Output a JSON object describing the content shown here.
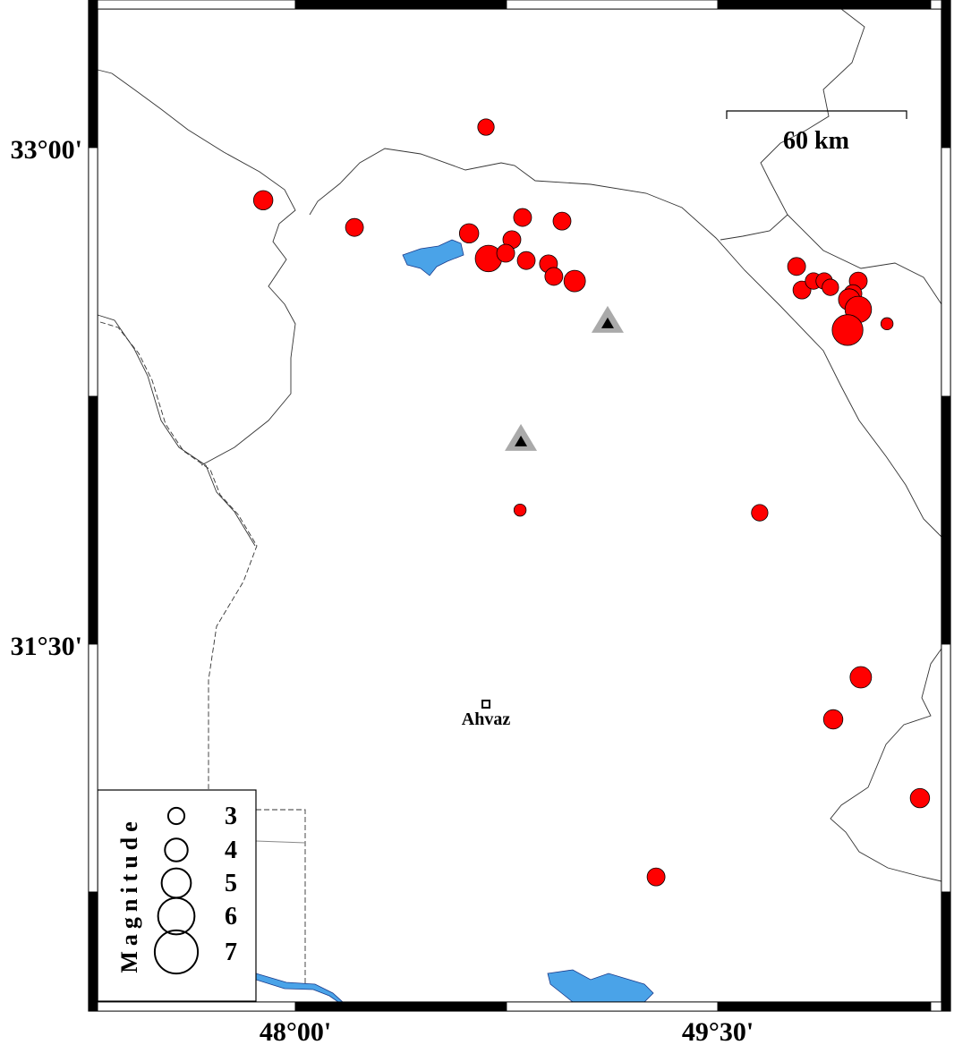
{
  "map": {
    "lon_ticks": [
      {
        "value": 48.0,
        "label": "48°00'"
      },
      {
        "value": 49.5,
        "label": "49°30'"
      }
    ],
    "lat_ticks": [
      {
        "value": 33.0,
        "label": "33°00'"
      },
      {
        "value": 31.5,
        "label": "31°30'"
      }
    ],
    "extent": {
      "lon": [
        47.27,
        50.27
      ],
      "lat": [
        30.39,
        33.45
      ]
    },
    "scale_bar": {
      "label": "60 km"
    },
    "city": {
      "name": "Ahvaz",
      "lon": 48.677,
      "lat": 31.319
    },
    "colors": {
      "event": "#ff0000",
      "water": "#4aa3e8",
      "station": "#aaaaaa"
    },
    "stations": [
      {
        "lon": 49.109,
        "lat": 32.468
      },
      {
        "lon": 48.801,
        "lat": 32.111
      }
    ],
    "events": [
      {
        "lon": 48.677,
        "lat": 33.062,
        "mag": 2.8
      },
      {
        "lon": 47.886,
        "lat": 32.841,
        "mag": 3.2
      },
      {
        "lon": 48.21,
        "lat": 32.759,
        "mag": 3.0
      },
      {
        "lon": 48.807,
        "lat": 32.789,
        "mag": 3.0
      },
      {
        "lon": 48.947,
        "lat": 32.778,
        "mag": 3.0
      },
      {
        "lon": 48.617,
        "lat": 32.741,
        "mag": 3.2
      },
      {
        "lon": 48.769,
        "lat": 32.722,
        "mag": 3.0
      },
      {
        "lon": 48.686,
        "lat": 32.665,
        "mag": 4.2
      },
      {
        "lon": 48.747,
        "lat": 32.681,
        "mag": 3.0
      },
      {
        "lon": 48.82,
        "lat": 32.659,
        "mag": 3.0
      },
      {
        "lon": 48.899,
        "lat": 32.649,
        "mag": 3.0
      },
      {
        "lon": 48.918,
        "lat": 32.611,
        "mag": 3.0
      },
      {
        "lon": 48.992,
        "lat": 32.597,
        "mag": 3.5
      },
      {
        "lon": 48.798,
        "lat": 31.905,
        "mag": 2.2
      },
      {
        "lon": 49.649,
        "lat": 31.897,
        "mag": 2.8
      },
      {
        "lon": 49.78,
        "lat": 32.641,
        "mag": 3.0
      },
      {
        "lon": 49.799,
        "lat": 32.57,
        "mag": 3.0
      },
      {
        "lon": 49.84,
        "lat": 32.597,
        "mag": 2.8
      },
      {
        "lon": 49.878,
        "lat": 32.597,
        "mag": 2.8
      },
      {
        "lon": 49.9,
        "lat": 32.578,
        "mag": 2.8
      },
      {
        "lon": 49.999,
        "lat": 32.597,
        "mag": 3.0
      },
      {
        "lon": 49.98,
        "lat": 32.559,
        "mag": 3.0
      },
      {
        "lon": 49.967,
        "lat": 32.541,
        "mag": 3.5
      },
      {
        "lon": 49.999,
        "lat": 32.511,
        "mag": 4.2
      },
      {
        "lon": 49.961,
        "lat": 32.449,
        "mag": 4.8
      },
      {
        "lon": 50.101,
        "lat": 32.468,
        "mag": 2.2
      },
      {
        "lon": 50.008,
        "lat": 31.4,
        "mag": 3.5
      },
      {
        "lon": 49.91,
        "lat": 31.273,
        "mag": 3.2
      },
      {
        "lon": 50.218,
        "lat": 31.035,
        "mag": 3.2
      },
      {
        "lon": 49.281,
        "lat": 30.797,
        "mag": 3.0
      }
    ],
    "legend": {
      "title": "Magnitude",
      "items": [
        {
          "mag": 3,
          "label": "3"
        },
        {
          "mag": 4,
          "label": "4"
        },
        {
          "mag": 5,
          "label": "5"
        },
        {
          "mag": 6,
          "label": "6"
        },
        {
          "mag": 7,
          "label": "7"
        }
      ]
    }
  }
}
